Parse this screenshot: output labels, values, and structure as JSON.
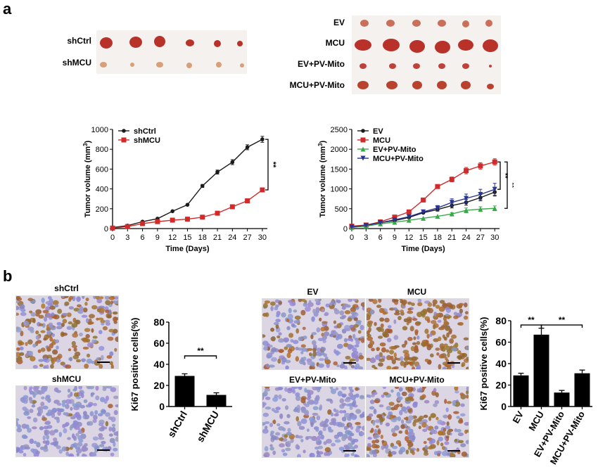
{
  "panel_a": {
    "letter": "a",
    "photo_left_rows": [
      "shCtrl",
      "shMCU"
    ],
    "photo_right_rows": [
      "EV",
      "MCU",
      "EV+PV-Mito",
      "MCU+PV-Mito"
    ]
  },
  "panel_b": {
    "letter": "b",
    "micro_left": [
      "shCtrl",
      "shMCU"
    ],
    "micro_right": [
      "EV",
      "MCU",
      "EV+PV-Mito",
      "MCU+PV-Mito"
    ]
  },
  "colors": {
    "black": "#1a1a1a",
    "red": "#d12a2a",
    "green": "#3aa84a",
    "navy": "#2a3590",
    "stain_brown": "#9a6a2c",
    "stain_blue": "#8f8fc4",
    "tumor": "#c0392b"
  },
  "chart_data": [
    {
      "type": "line",
      "name": "tumor-volume-left",
      "x": [
        0,
        3,
        6,
        9,
        12,
        15,
        18,
        21,
        24,
        27,
        30
      ],
      "xticks": [
        0,
        3,
        6,
        9,
        12,
        15,
        18,
        21,
        24,
        27,
        30
      ],
      "yticks": [
        0,
        200,
        400,
        600,
        800,
        1000
      ],
      "xlim": [
        0,
        31
      ],
      "ylim": [
        0,
        1000
      ],
      "xlabel": "Time (Days)",
      "ylabel": "Tumor volume (mm",
      "ylabel_sup": "3",
      "ylabel_end": ")",
      "legend": "top-left",
      "significance": "**",
      "series": [
        {
          "name": "shCtrl",
          "color": "#1a1a1a",
          "marker": "circle",
          "values": [
            10,
            30,
            70,
            100,
            175,
            240,
            430,
            570,
            670,
            820,
            900
          ],
          "errors": [
            0,
            0,
            0,
            0,
            0,
            0,
            15,
            20,
            25,
            25,
            30
          ]
        },
        {
          "name": "shMCU",
          "color": "#d12a2a",
          "marker": "square",
          "values": [
            5,
            20,
            50,
            70,
            85,
            95,
            115,
            155,
            220,
            280,
            390
          ],
          "errors": [
            0,
            0,
            0,
            0,
            0,
            0,
            0,
            0,
            10,
            15,
            20
          ]
        }
      ]
    },
    {
      "type": "line",
      "name": "tumor-volume-right",
      "x": [
        0,
        3,
        6,
        9,
        12,
        15,
        18,
        21,
        24,
        27,
        30
      ],
      "xticks": [
        0,
        3,
        6,
        9,
        12,
        15,
        18,
        21,
        24,
        27,
        30
      ],
      "yticks": [
        0,
        500,
        1000,
        1500,
        2000,
        2500
      ],
      "xlim": [
        0,
        31
      ],
      "ylim": [
        0,
        2500
      ],
      "xlabel": "Time (Days)",
      "ylabel": "Tumor volume (mm",
      "ylabel_sup": "3",
      "ylabel_end": ")",
      "legend": "top-left",
      "significance": [
        "**",
        "**"
      ],
      "series": [
        {
          "name": "EV",
          "color": "#1a1a1a",
          "marker": "circle",
          "values": [
            50,
            70,
            150,
            200,
            280,
            400,
            480,
            580,
            660,
            780,
            920
          ],
          "errors": [
            0,
            0,
            0,
            0,
            0,
            0,
            40,
            60,
            70,
            80,
            100
          ]
        },
        {
          "name": "MCU",
          "color": "#d12a2a",
          "marker": "square",
          "values": [
            60,
            90,
            170,
            290,
            420,
            720,
            1060,
            1240,
            1460,
            1580,
            1680
          ],
          "errors": [
            0,
            0,
            0,
            0,
            0,
            30,
            40,
            60,
            80,
            80,
            80
          ]
        },
        {
          "name": "EV+PV-Mito",
          "color": "#3aa84a",
          "marker": "triangle",
          "values": [
            30,
            60,
            120,
            160,
            210,
            260,
            310,
            370,
            460,
            490,
            510
          ],
          "errors": [
            0,
            0,
            0,
            0,
            0,
            0,
            0,
            30,
            60,
            60,
            60
          ]
        },
        {
          "name": "MCU+PV-Mito",
          "color": "#2a3590",
          "marker": "triangle-down",
          "values": [
            40,
            80,
            150,
            220,
            300,
            420,
            520,
            660,
            760,
            860,
            990
          ],
          "errors": [
            0,
            0,
            0,
            0,
            0,
            0,
            60,
            90,
            110,
            130,
            150
          ]
        }
      ]
    },
    {
      "type": "bar",
      "name": "ki67-left",
      "categories": [
        "shCtrl",
        "shMCU"
      ],
      "values": [
        29,
        11
      ],
      "errors": [
        2,
        2
      ],
      "yticks": [
        0,
        20,
        40,
        60,
        80
      ],
      "ylim": [
        0,
        80
      ],
      "ylabel": "Ki67 positive cells(%)",
      "significance": "**"
    },
    {
      "type": "bar",
      "name": "ki67-right",
      "categories": [
        "EV",
        "MCU",
        "EV+PV-Mito",
        "MCU+PV-Mito"
      ],
      "values": [
        29,
        67,
        13,
        31
      ],
      "errors": [
        2,
        6,
        2,
        3
      ],
      "yticks": [
        0,
        20,
        40,
        60,
        80
      ],
      "ylim": [
        0,
        80
      ],
      "ylabel": "Ki67 positive cells(%)",
      "significance": [
        "**",
        "**"
      ]
    }
  ]
}
